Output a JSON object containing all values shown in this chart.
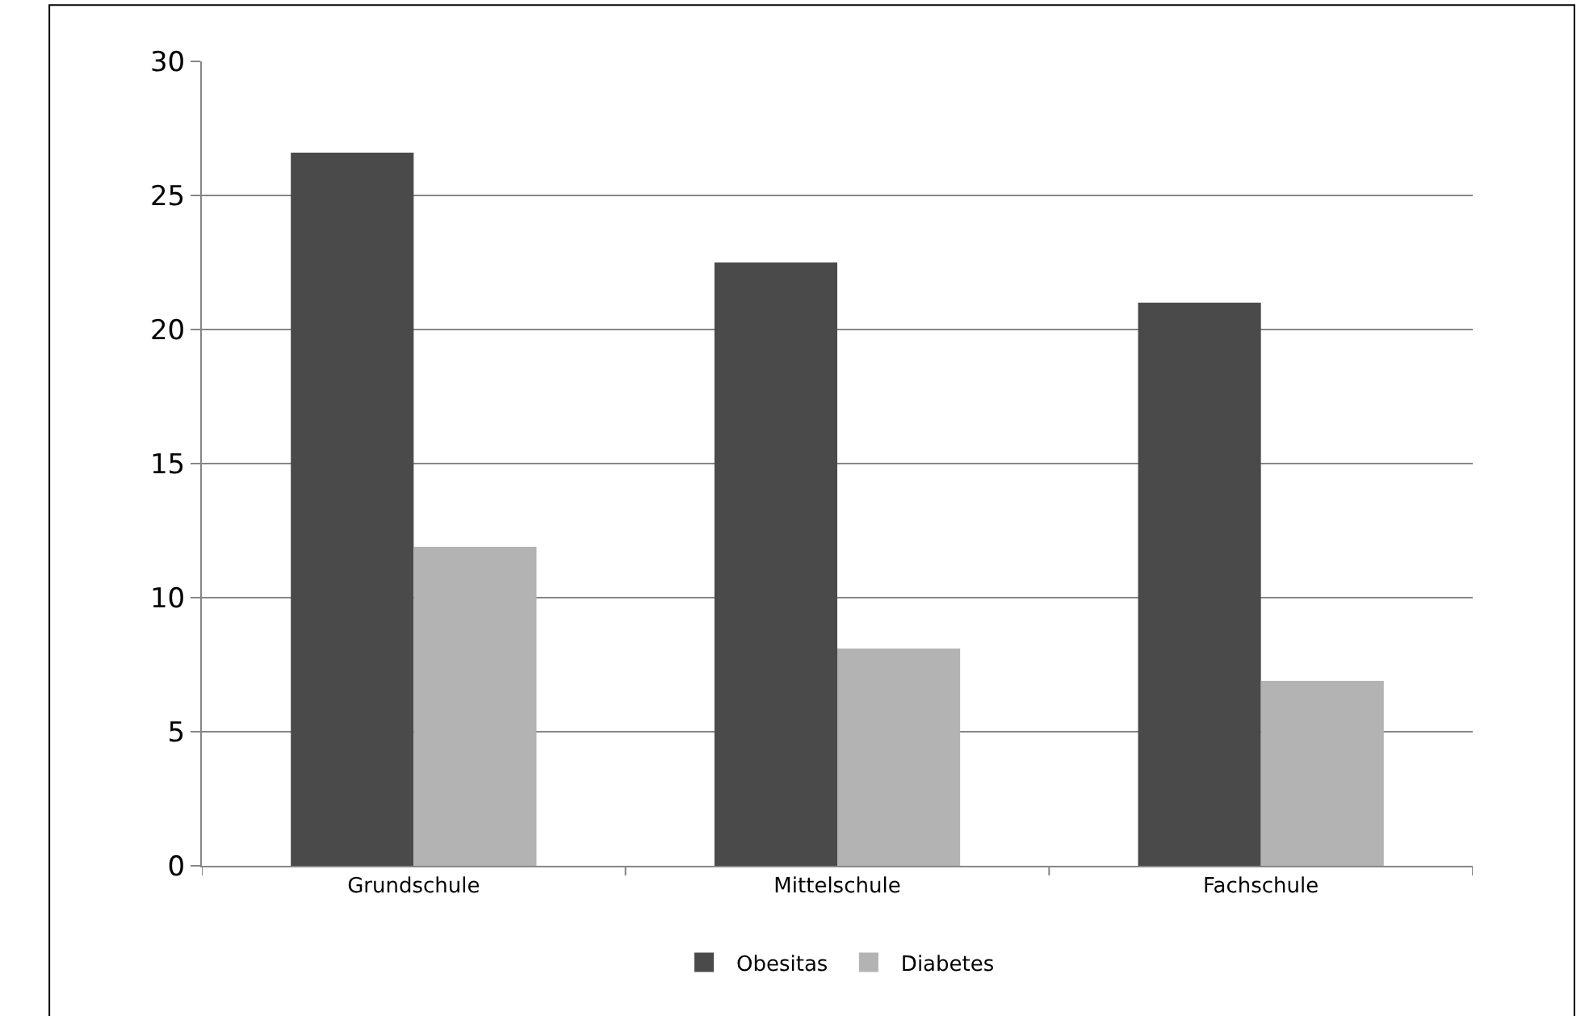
{
  "chart_data": {
    "type": "bar",
    "categories": [
      "Grundschule",
      "Mittelschule",
      "Fachschule"
    ],
    "series": [
      {
        "name": "Obesitas",
        "color": "#4a4a4a",
        "values": [
          26.6,
          22.5,
          21.0
        ]
      },
      {
        "name": "Diabetes",
        "color": "#b3b3b3",
        "values": [
          11.9,
          8.1,
          6.9
        ]
      }
    ],
    "ylim": [
      0,
      30
    ],
    "yticks": [
      0,
      5,
      10,
      15,
      20,
      25,
      30
    ],
    "grid": "y",
    "legend": "bottom"
  }
}
